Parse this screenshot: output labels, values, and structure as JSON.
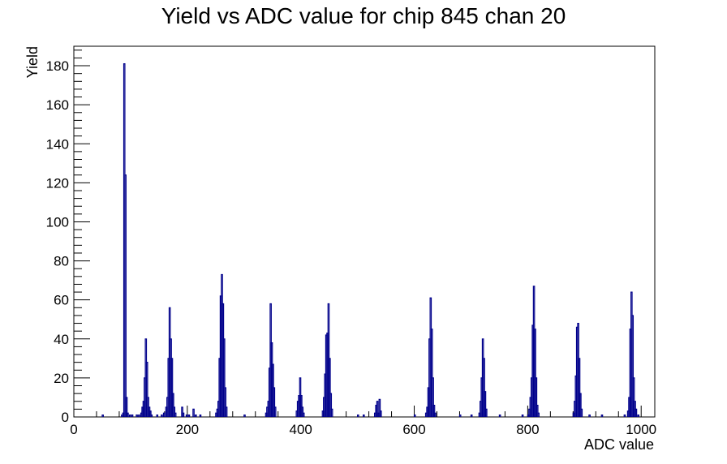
{
  "chart_data": {
    "type": "bar",
    "title": "Yield vs ADC value for chip 845 chan 20",
    "xlabel": "ADC value",
    "ylabel": "Yield",
    "xlim": [
      0,
      1024
    ],
    "ylim": [
      0,
      190
    ],
    "xticks": [
      0,
      200,
      400,
      600,
      800,
      1000
    ],
    "yticks": [
      0,
      20,
      40,
      60,
      80,
      100,
      120,
      140,
      160,
      180
    ],
    "line_color": "#00008b",
    "bin_width": 2,
    "series": [
      {
        "bins": [
          [
            50,
            1
          ],
          [
            84,
            1
          ],
          [
            86,
            2
          ],
          [
            88,
            181
          ],
          [
            90,
            124
          ],
          [
            92,
            10
          ],
          [
            94,
            2
          ],
          [
            98,
            1
          ],
          [
            102,
            1
          ],
          [
            110,
            1
          ],
          [
            114,
            1
          ],
          [
            118,
            2
          ],
          [
            120,
            5
          ],
          [
            122,
            8
          ],
          [
            124,
            20
          ],
          [
            126,
            40
          ],
          [
            128,
            28
          ],
          [
            130,
            10
          ],
          [
            132,
            5
          ],
          [
            134,
            3
          ],
          [
            136,
            1
          ],
          [
            146,
            1
          ],
          [
            154,
            1
          ],
          [
            158,
            2
          ],
          [
            162,
            5
          ],
          [
            164,
            10
          ],
          [
            166,
            30
          ],
          [
            168,
            56
          ],
          [
            170,
            40
          ],
          [
            172,
            30
          ],
          [
            174,
            12
          ],
          [
            176,
            5
          ],
          [
            178,
            2
          ],
          [
            190,
            5
          ],
          [
            192,
            2
          ],
          [
            198,
            1
          ],
          [
            202,
            1
          ],
          [
            210,
            4
          ],
          [
            214,
            1
          ],
          [
            222,
            1
          ],
          [
            250,
            2
          ],
          [
            252,
            4
          ],
          [
            254,
            8
          ],
          [
            256,
            30
          ],
          [
            258,
            62
          ],
          [
            260,
            73
          ],
          [
            262,
            58
          ],
          [
            264,
            40
          ],
          [
            266,
            15
          ],
          [
            268,
            5
          ],
          [
            300,
            1
          ],
          [
            338,
            2
          ],
          [
            340,
            5
          ],
          [
            342,
            8
          ],
          [
            344,
            25
          ],
          [
            346,
            58
          ],
          [
            348,
            38
          ],
          [
            350,
            27
          ],
          [
            352,
            15
          ],
          [
            354,
            5
          ],
          [
            392,
            3
          ],
          [
            394,
            8
          ],
          [
            396,
            11
          ],
          [
            398,
            20
          ],
          [
            400,
            11
          ],
          [
            402,
            5
          ],
          [
            404,
            2
          ],
          [
            438,
            3
          ],
          [
            440,
            10
          ],
          [
            442,
            22
          ],
          [
            444,
            42
          ],
          [
            446,
            43
          ],
          [
            448,
            58
          ],
          [
            450,
            30
          ],
          [
            452,
            12
          ],
          [
            454,
            4
          ],
          [
            500,
            1
          ],
          [
            510,
            1
          ],
          [
            530,
            2
          ],
          [
            532,
            6
          ],
          [
            534,
            8
          ],
          [
            536,
            2
          ],
          [
            538,
            9
          ],
          [
            540,
            3
          ],
          [
            600,
            1
          ],
          [
            620,
            2
          ],
          [
            622,
            5
          ],
          [
            624,
            15
          ],
          [
            626,
            40
          ],
          [
            628,
            61
          ],
          [
            630,
            45
          ],
          [
            632,
            20
          ],
          [
            634,
            6
          ],
          [
            636,
            2
          ],
          [
            680,
            1
          ],
          [
            700,
            1
          ],
          [
            714,
            2
          ],
          [
            716,
            8
          ],
          [
            718,
            20
          ],
          [
            720,
            40
          ],
          [
            722,
            30
          ],
          [
            724,
            13
          ],
          [
            726,
            4
          ],
          [
            750,
            1
          ],
          [
            790,
            1
          ],
          [
            800,
            1
          ],
          [
            802,
            4
          ],
          [
            804,
            10
          ],
          [
            806,
            20
          ],
          [
            808,
            47
          ],
          [
            810,
            67
          ],
          [
            812,
            45
          ],
          [
            814,
            20
          ],
          [
            816,
            6
          ],
          [
            818,
            2
          ],
          [
            880,
            2
          ],
          [
            882,
            8
          ],
          [
            884,
            21
          ],
          [
            886,
            46
          ],
          [
            888,
            48
          ],
          [
            890,
            30
          ],
          [
            892,
            12
          ],
          [
            894,
            4
          ],
          [
            908,
            1
          ],
          [
            930,
            1
          ],
          [
            970,
            1
          ],
          [
            976,
            3
          ],
          [
            978,
            10
          ],
          [
            980,
            45
          ],
          [
            982,
            64
          ],
          [
            984,
            52
          ],
          [
            986,
            20
          ],
          [
            988,
            8
          ],
          [
            990,
            4
          ],
          [
            994,
            1
          ]
        ]
      }
    ]
  }
}
